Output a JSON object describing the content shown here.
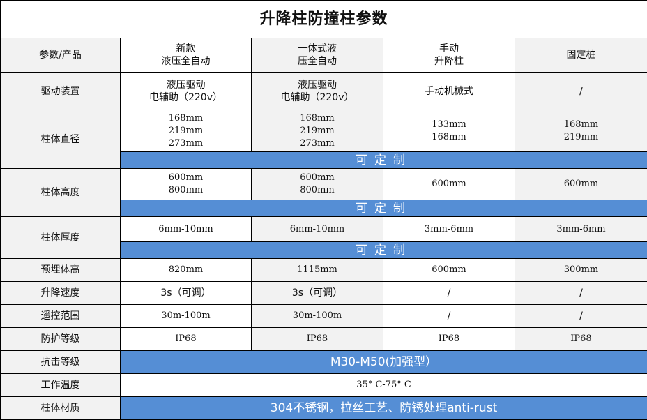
{
  "title": "升降柱防撞柱参数",
  "colors": {
    "header_bg": "#f2f2f2",
    "accent_blue": "#558ed5"
  },
  "headers": [
    "参数/产品",
    "新款\n液压全自动",
    "一体式液\n压全自动",
    "手动\n升降柱",
    "固定桩"
  ],
  "rows": {
    "drive": {
      "label": "驱动装置",
      "values": [
        "液压驱动\n电辅助（220v）",
        "液压驱动\n电辅助（220v）",
        "手动机械式",
        "/"
      ]
    },
    "diameter": {
      "label": "柱体直径",
      "values": [
        "168mm\n219mm\n273mm",
        "168mm\n219mm\n273mm",
        "133mm\n168mm",
        "168mm\n219mm"
      ],
      "note": "可定制"
    },
    "height": {
      "label": "柱体高度",
      "values": [
        "600mm\n800mm",
        "600mm\n800mm",
        "600mm",
        "600mm"
      ],
      "note": "可定制"
    },
    "thickness": {
      "label": "柱体厚度",
      "values": [
        "6mm-10mm",
        "6mm-10mm",
        "3mm-6mm",
        "3mm-6mm"
      ],
      "note": "可定制"
    },
    "embed": {
      "label": "预埋体高",
      "values": [
        "820mm",
        "1115mm",
        "600mm",
        "300mm"
      ]
    },
    "speed": {
      "label": "升降速度",
      "values": [
        "3s（可调）",
        "3s（可调）",
        "/",
        "/"
      ]
    },
    "remote": {
      "label": "遥控范围",
      "values": [
        "30m-100m",
        "30m-100m",
        "/",
        "/"
      ]
    },
    "protection": {
      "label": "防护等级",
      "values": [
        "IP68",
        "IP68",
        "IP68",
        "IP68"
      ]
    },
    "impact": {
      "label": "抗击等级",
      "value": "M30-M50(加强型）"
    },
    "temp": {
      "label": "工作温度",
      "value": "35° C-75° C"
    },
    "material": {
      "label": "柱体材质",
      "value": "304不锈钢，拉丝工艺、防锈处理anti-rust"
    }
  }
}
